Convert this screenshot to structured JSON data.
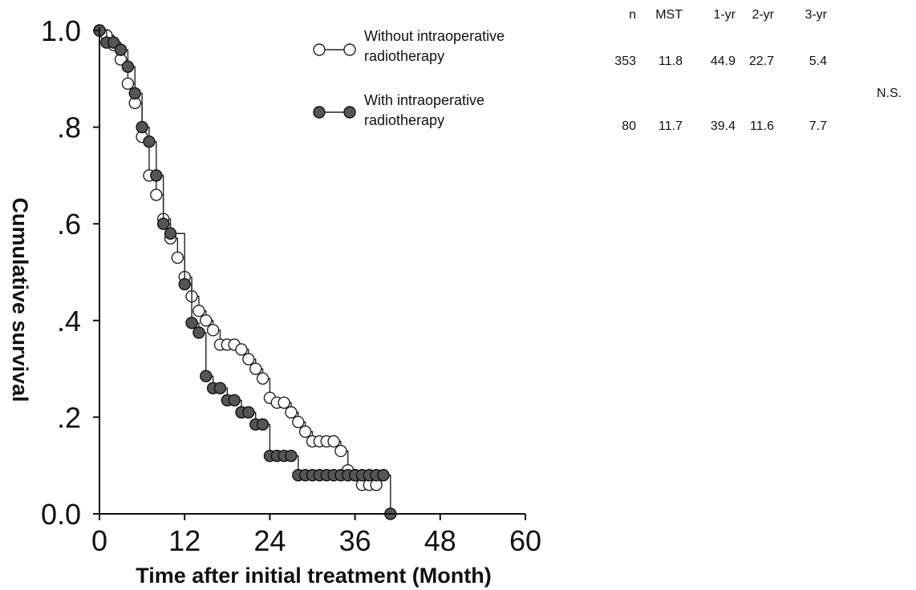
{
  "chart_data": {
    "type": "line",
    "subtype": "kaplan-meier step survival curve",
    "xlabel": "Time after initial treatment (Month)",
    "ylabel": "Cumulative survival",
    "xlim": [
      0,
      60
    ],
    "ylim": [
      0,
      1.0
    ],
    "x_ticks": [
      0,
      12,
      24,
      36,
      48,
      60
    ],
    "x_tick_labels": [
      "0",
      "12",
      "24",
      "36",
      "48",
      "60"
    ],
    "y_ticks": [
      0,
      0.2,
      0.4,
      0.6,
      0.8,
      1.0
    ],
    "y_tick_labels": [
      "0.0",
      ".2",
      ".4",
      ".6",
      ".8",
      "1.0"
    ],
    "grid": false,
    "legend_position": "top-right",
    "series": [
      {
        "name": "Without intraoperative radiotherapy",
        "marker": "open-circle",
        "points": [
          [
            0,
            1.0
          ],
          [
            1,
            0.99
          ],
          [
            2,
            0.97
          ],
          [
            3,
            0.94
          ],
          [
            4,
            0.89
          ],
          [
            5,
            0.85
          ],
          [
            6,
            0.78
          ],
          [
            7,
            0.7
          ],
          [
            8,
            0.66
          ],
          [
            9,
            0.61
          ],
          [
            10,
            0.57
          ],
          [
            11,
            0.53
          ],
          [
            12,
            0.49
          ],
          [
            13,
            0.45
          ],
          [
            14,
            0.42
          ],
          [
            15,
            0.4
          ],
          [
            16,
            0.38
          ],
          [
            17,
            0.35
          ],
          [
            18,
            0.35
          ],
          [
            19,
            0.35
          ],
          [
            20,
            0.34
          ],
          [
            21,
            0.32
          ],
          [
            22,
            0.3
          ],
          [
            23,
            0.28
          ],
          [
            24,
            0.24
          ],
          [
            25,
            0.23
          ],
          [
            26,
            0.23
          ],
          [
            27,
            0.21
          ],
          [
            28,
            0.19
          ],
          [
            29,
            0.17
          ],
          [
            30,
            0.15
          ],
          [
            31,
            0.15
          ],
          [
            32,
            0.15
          ],
          [
            33,
            0.15
          ],
          [
            34,
            0.13
          ],
          [
            35,
            0.09
          ],
          [
            36,
            0.08
          ],
          [
            37,
            0.06
          ],
          [
            38,
            0.06
          ],
          [
            39,
            0.06
          ]
        ]
      },
      {
        "name": "With intraoperative radiotherapy",
        "marker": "filled-circle",
        "points": [
          [
            0,
            1.0
          ],
          [
            1,
            0.975
          ],
          [
            2,
            0.975
          ],
          [
            3,
            0.96
          ],
          [
            4,
            0.925
          ],
          [
            5,
            0.87
          ],
          [
            6,
            0.8
          ],
          [
            7,
            0.77
          ],
          [
            8,
            0.7
          ],
          [
            9,
            0.6
          ],
          [
            10,
            0.58
          ],
          [
            12,
            0.475
          ],
          [
            13,
            0.395
          ],
          [
            14,
            0.375
          ],
          [
            15,
            0.285
          ],
          [
            16,
            0.26
          ],
          [
            17,
            0.26
          ],
          [
            18,
            0.235
          ],
          [
            19,
            0.235
          ],
          [
            20,
            0.21
          ],
          [
            21,
            0.21
          ],
          [
            22,
            0.185
          ],
          [
            23,
            0.185
          ],
          [
            24,
            0.12
          ],
          [
            25,
            0.12
          ],
          [
            26,
            0.12
          ],
          [
            27,
            0.12
          ],
          [
            28,
            0.08
          ],
          [
            29,
            0.08
          ],
          [
            30,
            0.08
          ],
          [
            31,
            0.08
          ],
          [
            32,
            0.08
          ],
          [
            33,
            0.08
          ],
          [
            34,
            0.08
          ],
          [
            35,
            0.08
          ],
          [
            36,
            0.08
          ],
          [
            37,
            0.08
          ],
          [
            38,
            0.08
          ],
          [
            39,
            0.08
          ],
          [
            40,
            0.08
          ],
          [
            41,
            0.0
          ]
        ]
      }
    ],
    "stats_table": {
      "headers": [
        "n",
        "MST",
        "1-yr",
        "2-yr",
        "3-yr"
      ],
      "rows": [
        [
          "353",
          "11.8",
          "44.9",
          "22.7",
          "5.4"
        ],
        [
          "80",
          "11.7",
          "39.4",
          "11.6",
          "7.7"
        ]
      ],
      "note": "N.S."
    }
  },
  "legend": {
    "items": [
      {
        "line1": "Without intraoperative",
        "line2": "radiotherapy",
        "marker": "open-circle"
      },
      {
        "line1": "With intraoperative",
        "line2": "radiotherapy",
        "marker": "filled-circle"
      }
    ]
  }
}
